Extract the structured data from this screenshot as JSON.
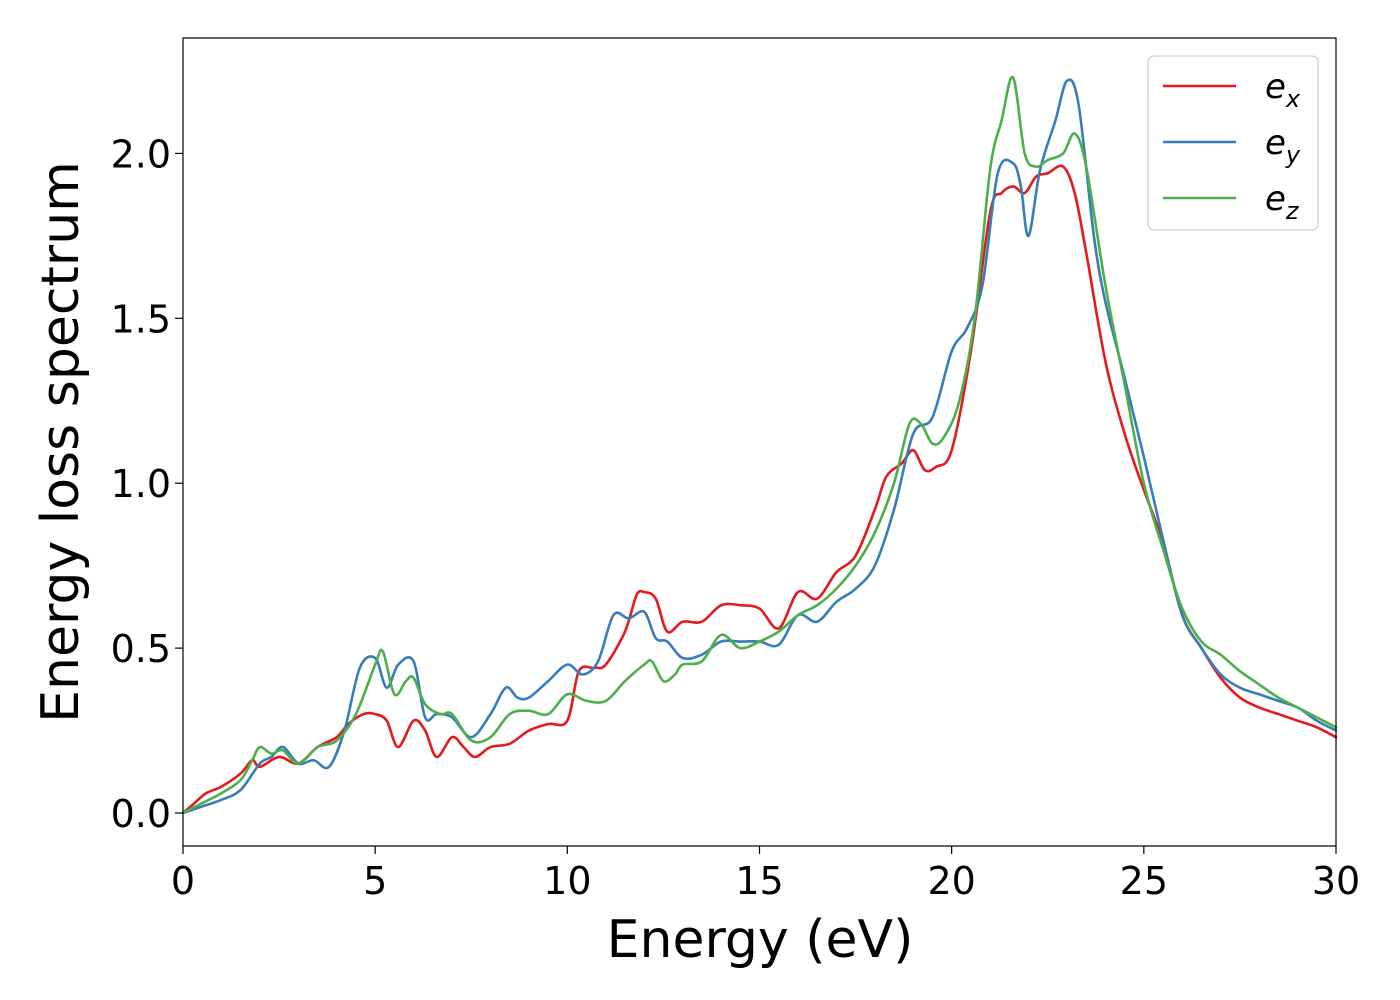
{
  "chart_data": {
    "type": "line",
    "xlabel": "Energy (eV)",
    "ylabel": "Energy loss spectrum",
    "xlim": [
      0,
      30
    ],
    "ylim": [
      -0.1,
      2.35
    ],
    "xticks": [
      0,
      5,
      10,
      15,
      20,
      25,
      30
    ],
    "xtick_labels": [
      "0",
      "5",
      "10",
      "15",
      "20",
      "25",
      "30"
    ],
    "yticks": [
      0.0,
      0.5,
      1.0,
      1.5,
      2.0
    ],
    "ytick_labels": [
      "0.0",
      "0.5",
      "1.0",
      "1.5",
      "2.0"
    ],
    "grid": false,
    "legend_position": "upper-right",
    "series": [
      {
        "name": "e_x",
        "legend_base": "e",
        "legend_sub": "x",
        "color": "#e41a1c",
        "x": [
          0,
          0.3,
          0.6,
          1.0,
          1.5,
          1.8,
          2.0,
          2.5,
          3.0,
          3.5,
          4.0,
          4.3,
          4.7,
          5.0,
          5.3,
          5.6,
          6.0,
          6.3,
          6.6,
          7.0,
          7.3,
          7.6,
          8.0,
          8.5,
          9.0,
          9.5,
          10.0,
          10.3,
          10.7,
          11.0,
          11.5,
          11.8,
          12.0,
          12.3,
          12.6,
          13.0,
          13.5,
          14.0,
          14.5,
          15.0,
          15.5,
          16.0,
          16.5,
          17.0,
          17.5,
          18.0,
          18.3,
          18.7,
          19.0,
          19.3,
          19.6,
          20.0,
          20.5,
          21.0,
          21.3,
          21.6,
          21.9,
          22.2,
          22.5,
          22.9,
          23.2,
          23.5,
          24.0,
          24.5,
          25.0,
          25.5,
          26.0,
          26.5,
          27.0,
          27.5,
          28.0,
          28.5,
          29.0,
          29.5,
          30.0
        ],
        "y": [
          0.0,
          0.03,
          0.06,
          0.08,
          0.12,
          0.16,
          0.14,
          0.17,
          0.15,
          0.2,
          0.23,
          0.27,
          0.3,
          0.3,
          0.28,
          0.2,
          0.28,
          0.25,
          0.17,
          0.23,
          0.2,
          0.17,
          0.2,
          0.21,
          0.25,
          0.27,
          0.28,
          0.43,
          0.44,
          0.45,
          0.55,
          0.66,
          0.67,
          0.65,
          0.55,
          0.58,
          0.58,
          0.63,
          0.63,
          0.62,
          0.56,
          0.67,
          0.65,
          0.73,
          0.78,
          0.92,
          1.02,
          1.06,
          1.1,
          1.04,
          1.05,
          1.1,
          1.4,
          1.82,
          1.88,
          1.9,
          1.88,
          1.93,
          1.94,
          1.96,
          1.88,
          1.7,
          1.37,
          1.15,
          0.98,
          0.82,
          0.6,
          0.5,
          0.41,
          0.35,
          0.32,
          0.3,
          0.28,
          0.26,
          0.23
        ]
      },
      {
        "name": "e_y",
        "legend_base": "e",
        "legend_sub": "y",
        "color": "#377eb8",
        "x": [
          0,
          0.5,
          1.0,
          1.5,
          2.0,
          2.3,
          2.6,
          3.0,
          3.4,
          3.8,
          4.2,
          4.6,
          5.0,
          5.3,
          5.6,
          6.0,
          6.3,
          6.6,
          7.0,
          7.5,
          8.0,
          8.4,
          8.7,
          9.0,
          9.5,
          10.0,
          10.4,
          10.8,
          11.2,
          11.6,
          12.0,
          12.3,
          12.6,
          13.0,
          13.5,
          14.0,
          14.5,
          15.0,
          15.5,
          16.0,
          16.5,
          17.0,
          17.5,
          18.0,
          18.5,
          19.0,
          19.5,
          20.0,
          20.4,
          20.8,
          21.2,
          21.6,
          21.8,
          22.0,
          22.3,
          22.7,
          23.0,
          23.3,
          23.7,
          24.0,
          24.5,
          25.0,
          25.5,
          26.0,
          26.5,
          27.0,
          27.5,
          28.0,
          28.5,
          29.0,
          29.5,
          30.0
        ],
        "y": [
          0.0,
          0.02,
          0.04,
          0.07,
          0.15,
          0.17,
          0.2,
          0.15,
          0.16,
          0.14,
          0.25,
          0.44,
          0.47,
          0.38,
          0.45,
          0.46,
          0.29,
          0.3,
          0.29,
          0.23,
          0.3,
          0.38,
          0.35,
          0.35,
          0.4,
          0.45,
          0.42,
          0.46,
          0.6,
          0.59,
          0.61,
          0.53,
          0.52,
          0.47,
          0.48,
          0.52,
          0.52,
          0.52,
          0.51,
          0.6,
          0.58,
          0.64,
          0.68,
          0.75,
          0.92,
          1.15,
          1.2,
          1.4,
          1.47,
          1.6,
          1.94,
          1.97,
          1.9,
          1.75,
          1.95,
          2.1,
          2.22,
          2.15,
          1.75,
          1.55,
          1.32,
          1.08,
          0.83,
          0.6,
          0.5,
          0.42,
          0.38,
          0.36,
          0.34,
          0.32,
          0.28,
          0.25
        ]
      },
      {
        "name": "e_z",
        "legend_base": "e",
        "legend_sub": "z",
        "color": "#4daf4a",
        "x": [
          0,
          0.5,
          1.0,
          1.5,
          1.8,
          2.0,
          2.3,
          2.6,
          3.0,
          3.5,
          4.0,
          4.5,
          5.0,
          5.2,
          5.5,
          5.8,
          6.0,
          6.3,
          6.7,
          7.0,
          7.5,
          8.0,
          8.5,
          9.0,
          9.5,
          10.0,
          10.5,
          11.0,
          11.5,
          12.0,
          12.2,
          12.5,
          12.8,
          13.0,
          13.5,
          14.0,
          14.5,
          15.0,
          15.5,
          16.0,
          16.5,
          17.0,
          17.5,
          18.0,
          18.5,
          18.9,
          19.2,
          19.5,
          19.8,
          20.2,
          20.6,
          21.0,
          21.3,
          21.6,
          21.9,
          22.2,
          22.5,
          22.9,
          23.2,
          23.5,
          24.0,
          24.5,
          25.0,
          25.5,
          26.0,
          26.5,
          27.0,
          27.5,
          28.0,
          28.5,
          29.0,
          29.5,
          30.0
        ],
        "y": [
          0.0,
          0.03,
          0.06,
          0.1,
          0.16,
          0.2,
          0.18,
          0.19,
          0.15,
          0.2,
          0.22,
          0.3,
          0.45,
          0.49,
          0.36,
          0.4,
          0.41,
          0.33,
          0.3,
          0.3,
          0.22,
          0.23,
          0.3,
          0.31,
          0.3,
          0.36,
          0.34,
          0.34,
          0.4,
          0.45,
          0.46,
          0.4,
          0.42,
          0.45,
          0.46,
          0.54,
          0.5,
          0.52,
          0.55,
          0.6,
          0.63,
          0.68,
          0.75,
          0.85,
          1.0,
          1.18,
          1.18,
          1.12,
          1.14,
          1.25,
          1.5,
          1.95,
          2.1,
          2.23,
          2.0,
          1.96,
          1.98,
          2.0,
          2.06,
          1.96,
          1.6,
          1.3,
          1.0,
          0.8,
          0.62,
          0.52,
          0.48,
          0.43,
          0.39,
          0.35,
          0.32,
          0.29,
          0.26
        ]
      }
    ]
  }
}
